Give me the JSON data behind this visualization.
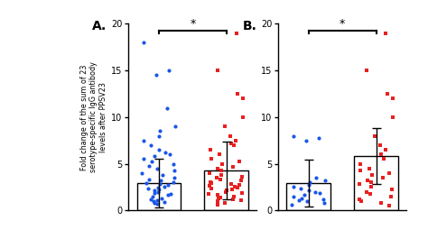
{
  "panel_A_label": "A.",
  "panel_B_label": "B.",
  "ylabel": "Fold change of the sum of 23\nserotype-specific IgG antibody\nlevels after PPSV23",
  "ylim": [
    0,
    20
  ],
  "yticks": [
    0,
    5,
    10,
    15,
    20
  ],
  "bar_color": "#ffffff",
  "bar_edgecolor": "#000000",
  "blue_color": "#1a56e8",
  "red_color": "#e82020",
  "significance_star": "*",
  "A_blue_bar_mean": 2.9,
  "A_blue_bar_sd": 2.6,
  "A_red_bar_mean": 4.3,
  "A_red_bar_sd": 3.1,
  "A_blue_dots": [
    18.0,
    15.0,
    14.5,
    11.0,
    9.0,
    8.5,
    8.0,
    7.5,
    7.0,
    6.5,
    6.2,
    6.0,
    5.8,
    5.5,
    5.2,
    5.0,
    4.8,
    4.5,
    4.3,
    4.0,
    3.8,
    3.5,
    3.3,
    3.2,
    3.0,
    2.9,
    2.8,
    2.7,
    2.5,
    2.4,
    2.3,
    2.2,
    2.1,
    2.0,
    1.9,
    1.8,
    1.7,
    1.5,
    1.3,
    1.2,
    1.1,
    1.0,
    0.9,
    0.8,
    0.7
  ],
  "A_red_dots": [
    19.0,
    15.0,
    12.5,
    12.0,
    10.0,
    9.0,
    8.0,
    7.5,
    7.2,
    7.0,
    6.5,
    6.0,
    5.5,
    5.2,
    5.0,
    4.7,
    4.5,
    4.3,
    4.0,
    3.8,
    3.6,
    3.5,
    3.3,
    3.2,
    3.0,
    2.9,
    2.8,
    2.7,
    2.6,
    2.5,
    2.4,
    2.3,
    2.2,
    2.1,
    2.0,
    1.9,
    1.8,
    1.7,
    1.5,
    1.4,
    1.3,
    1.2,
    1.1,
    1.0,
    0.8,
    0.6
  ],
  "B_blue_bar_mean": 2.9,
  "B_blue_bar_sd": 2.5,
  "B_red_bar_mean": 5.8,
  "B_red_bar_sd": 3.0,
  "B_blue_dots": [
    8.0,
    7.8,
    7.5,
    3.5,
    3.2,
    3.0,
    2.7,
    2.5,
    2.3,
    2.1,
    2.0,
    1.9,
    1.7,
    1.5,
    1.3,
    1.2,
    1.1,
    1.0,
    0.8,
    0.6
  ],
  "B_red_dots": [
    19.0,
    15.0,
    12.5,
    12.0,
    10.0,
    8.0,
    7.0,
    6.5,
    6.0,
    5.5,
    5.0,
    4.5,
    4.3,
    4.0,
    3.8,
    3.5,
    3.2,
    3.0,
    2.8,
    2.5,
    2.2,
    2.0,
    1.8,
    1.5,
    1.2,
    1.0,
    0.8,
    0.5
  ]
}
